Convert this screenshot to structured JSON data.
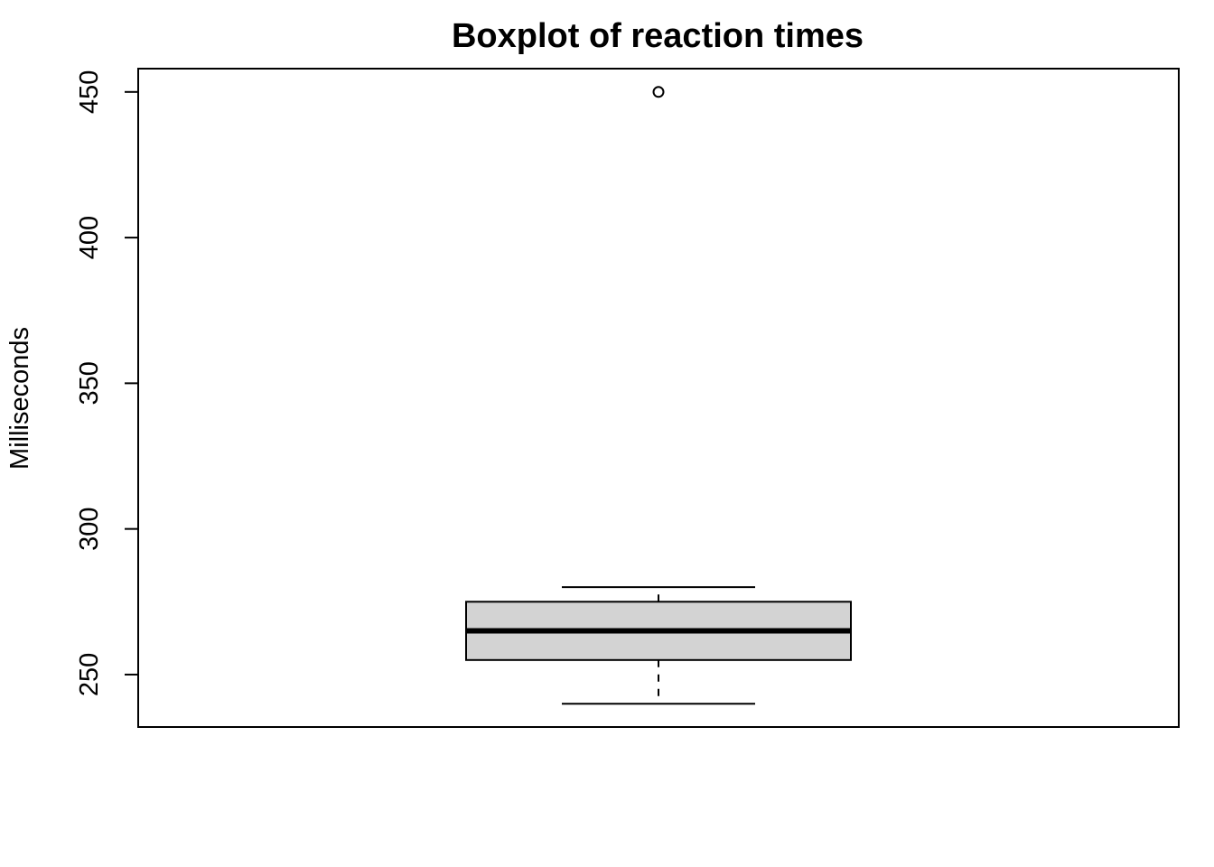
{
  "chart_data": {
    "type": "boxplot",
    "title": "Boxplot of reaction times",
    "xlabel": "",
    "ylabel": "Milliseconds",
    "ylim": [
      232,
      458
    ],
    "y_ticks": [
      250,
      300,
      350,
      400,
      450
    ],
    "y_tick_labels": [
      "250",
      "300",
      "350",
      "400",
      "450"
    ],
    "grid": false,
    "legend": "none",
    "boxes": [
      {
        "whisker_low": 240,
        "q1": 255,
        "median": 265,
        "q3": 275,
        "whisker_high": 280,
        "outliers": [
          450
        ]
      }
    ],
    "colors": {
      "box_fill": "#d3d3d3",
      "stroke": "#000000",
      "background": "#ffffff"
    }
  }
}
